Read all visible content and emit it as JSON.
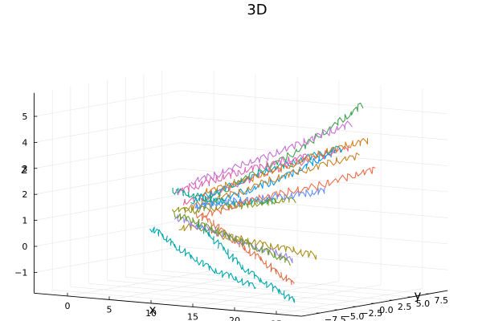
{
  "chart_data": {
    "type": "line",
    "projection": "3d",
    "title": "3D",
    "xlabel": "x",
    "ylabel": "y",
    "zlabel": "z",
    "xlim": [
      -4,
      28
    ],
    "ylim": [
      -10,
      10
    ],
    "zlim": [
      -1.8,
      5.9
    ],
    "x_ticks": [
      0,
      5,
      10,
      15,
      20,
      25
    ],
    "y_ticks": [
      -7.5,
      -5.0,
      -2.5,
      0.0,
      2.5,
      5.0,
      7.5
    ],
    "y_tick_labels": [
      "−7.5",
      "−5.0",
      "−2.5",
      "0.0",
      "2.5",
      "5.0",
      "7.5"
    ],
    "z_ticks": [
      -1,
      0,
      1,
      2,
      3,
      4,
      5
    ],
    "z_tick_labels": [
      "−1",
      "0",
      "1",
      "2",
      "3",
      "4",
      "5"
    ],
    "grid": true,
    "legend": "none",
    "series_colors": [
      "#009AFA",
      "#E36F47",
      "#3EA44E",
      "#C371D2",
      "#AC8E18",
      "#00A9AD",
      "#ED5E93",
      "#C68225",
      "#00A98D",
      "#8E971E",
      "#00A8CB",
      "#9B7FE9",
      "#618DF6",
      "#F16C4D",
      "#DD64B5",
      "#6A9C2A",
      "#00A9B0",
      "#D77F1D"
    ],
    "description_note": "",
    "series": [
      {
        "color": "#009AFA",
        "x": [
          7.0,
          10.2,
          13.8,
          16.8,
          19.8,
          22.5,
          25.0
        ],
        "y": [
          -0.5,
          -0.8,
          -1.2,
          -1.4,
          -1.6,
          -1.9,
          -2.2
        ],
        "z": [
          1.3,
          1.7,
          2.2,
          2.6,
          3.1,
          3.6,
          4.0
        ]
      },
      {
        "color": "#E36F47",
        "x": [
          7.5,
          10.5,
          13.5,
          16.5,
          19.5,
          22.0,
          24.5
        ],
        "y": [
          -1.0,
          -2.0,
          -3.2,
          -4.5,
          -5.6,
          -6.3,
          -7.0
        ],
        "z": [
          1.1,
          0.9,
          0.5,
          0.2,
          -0.1,
          -0.5,
          -0.8
        ]
      },
      {
        "color": "#3EA44E",
        "x": [
          6.5,
          9.5,
          12.5,
          15.5,
          18.5,
          21.0,
          23.0
        ],
        "y": [
          1.0,
          1.5,
          2.2,
          2.8,
          3.2,
          3.6,
          4.0
        ],
        "z": [
          1.5,
          2.1,
          2.8,
          3.4,
          4.2,
          4.9,
          5.5
        ]
      },
      {
        "color": "#C371D2",
        "x": [
          4.0,
          6.5,
          9.5,
          12.5,
          15.5,
          18.5,
          21.0
        ],
        "y": [
          2.5,
          3.0,
          3.5,
          3.8,
          4.2,
          4.5,
          4.8
        ],
        "z": [
          2.1,
          2.4,
          2.9,
          3.3,
          3.8,
          4.3,
          4.7
        ]
      },
      {
        "color": "#AC8E18",
        "x": [
          6.0,
          9.0,
          12.0,
          15.0,
          18.0,
          21.0,
          24.0
        ],
        "y": [
          -1.5,
          -2.0,
          -2.5,
          -2.8,
          -3.0,
          -3.2,
          -3.4
        ],
        "z": [
          0.6,
          0.7,
          0.5,
          0.4,
          0.3,
          0.2,
          0.1
        ]
      },
      {
        "color": "#00A9AD",
        "x": [
          8.0,
          11.0,
          14.0,
          17.0,
          20.0,
          23.0,
          25.5
        ],
        "y": [
          -1.5,
          -2.8,
          -4.2,
          -5.6,
          -6.5,
          -7.3,
          -8.0
        ],
        "z": [
          0.8,
          0.4,
          0.0,
          -0.4,
          -0.8,
          -1.1,
          -1.4
        ]
      },
      {
        "color": "#ED5E93",
        "x": [
          5.0,
          8.0,
          11.0,
          14.0,
          17.0,
          20.0,
          22.5
        ],
        "y": [
          0.0,
          0.3,
          0.8,
          1.5,
          2.0,
          2.6,
          3.0
        ],
        "z": [
          1.4,
          1.8,
          2.3,
          2.8,
          3.2,
          3.6,
          3.9
        ]
      },
      {
        "color": "#C68225",
        "x": [
          5.5,
          8.5,
          11.5,
          14.5,
          17.5,
          20.5,
          23.5
        ],
        "y": [
          -0.5,
          -0.2,
          0.4,
          1.2,
          2.0,
          2.6,
          3.1
        ],
        "z": [
          1.2,
          1.6,
          2.0,
          2.5,
          2.9,
          3.3,
          3.6
        ]
      },
      {
        "color": "#00A98D",
        "x": [
          3.0,
          5.5,
          8.5,
          11.5,
          14.5,
          17.0
        ],
        "y": [
          1.0,
          0.8,
          0.3,
          -0.2,
          -0.7,
          -1.0
        ],
        "z": [
          1.8,
          1.7,
          1.6,
          1.6,
          1.8,
          1.9
        ]
      },
      {
        "color": "#8E971E",
        "x": [
          3.5,
          6.5,
          9.5,
          12.5,
          15.5,
          18.5,
          21.5
        ],
        "y": [
          0.5,
          -0.2,
          -1.0,
          -1.8,
          -2.5,
          -3.0,
          -3.5
        ],
        "z": [
          1.1,
          1.2,
          1.4,
          1.6,
          1.8,
          2.0,
          2.2
        ]
      },
      {
        "color": "#00A8CB",
        "x": [
          7.0,
          10.0,
          13.0,
          16.0,
          19.0,
          22.0,
          24.5
        ],
        "y": [
          -1.0,
          -1.5,
          -1.6,
          -1.5,
          -1.2,
          -0.8,
          -0.5
        ],
        "z": [
          1.6,
          2.0,
          2.5,
          3.0,
          3.4,
          3.8,
          4.1
        ]
      },
      {
        "color": "#9B7FE9",
        "x": [
          4.5,
          7.5,
          10.5,
          13.5,
          16.5,
          19.5,
          22.0
        ],
        "y": [
          -0.5,
          -1.2,
          -2.0,
          -2.6,
          -3.2,
          -3.8,
          -4.3
        ],
        "z": [
          0.9,
          0.7,
          0.6,
          0.4,
          0.2,
          0.1,
          -0.1
        ]
      },
      {
        "color": "#618DF6",
        "x": [
          6.0,
          9.0,
          12.0,
          15.0,
          18.0,
          21.0,
          23.5
        ],
        "y": [
          0.5,
          0.2,
          -0.2,
          -0.5,
          -0.8,
          -1.2,
          -1.5
        ],
        "z": [
          1.3,
          1.5,
          1.7,
          1.9,
          2.1,
          2.3,
          2.5
        ]
      },
      {
        "color": "#F16C4D",
        "x": [
          7.5,
          10.5,
          13.5,
          16.5,
          19.5,
          22.5,
          25.0
        ],
        "y": [
          -0.3,
          0.2,
          0.8,
          1.5,
          2.3,
          3.0,
          3.6
        ],
        "z": [
          1.0,
          1.4,
          1.8,
          2.1,
          2.4,
          2.8,
          3.1
        ]
      },
      {
        "color": "#DD64B5",
        "x": [
          2.5,
          5.0,
          8.0,
          11.0,
          14.0,
          17.0
        ],
        "y": [
          2.0,
          2.4,
          2.6,
          2.9,
          3.1,
          3.4
        ],
        "z": [
          1.7,
          2.0,
          2.4,
          2.8,
          3.1,
          3.4
        ]
      },
      {
        "color": "#6A9C2A",
        "x": [
          5.0,
          8.0,
          11.0,
          14.0,
          17.0,
          20.0,
          22.5
        ],
        "y": [
          -1.0,
          -1.8,
          -2.6,
          -3.4,
          -4.1,
          -4.8,
          -5.4
        ],
        "z": [
          1.0,
          0.9,
          0.7,
          0.5,
          0.3,
          0.1,
          -0.1
        ]
      },
      {
        "color": "#00A9B0",
        "x": [
          3.0,
          5.5,
          8.0,
          11.0,
          14.0,
          17.0,
          20.0
        ],
        "y": [
          -2.0,
          -3.0,
          -4.2,
          -5.2,
          -6.0,
          -6.6,
          -7.2
        ],
        "z": [
          0.5,
          0.3,
          0.0,
          -0.3,
          -0.6,
          -0.8,
          -1.0
        ]
      },
      {
        "color": "#D77F1D",
        "x": [
          6.5,
          9.5,
          12.5,
          15.5,
          18.5,
          21.5,
          24.0
        ],
        "y": [
          1.0,
          1.4,
          2.0,
          2.5,
          3.0,
          3.4,
          3.7
        ],
        "z": [
          1.8,
          2.2,
          2.6,
          3.0,
          3.5,
          3.9,
          4.2
        ]
      }
    ]
  }
}
